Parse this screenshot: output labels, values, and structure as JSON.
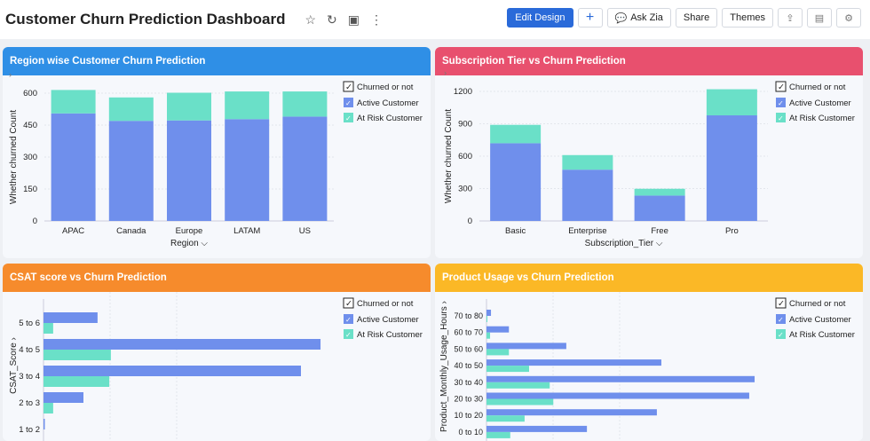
{
  "header": {
    "title": "Customer Churn Prediction Dashboard",
    "icons": [
      "star-icon",
      "refresh-icon",
      "save-icon",
      "more-vertical-icon"
    ],
    "buttons": {
      "edit_design": "Edit Design",
      "add": "+",
      "ask_zia": "Ask Zia",
      "share": "Share",
      "themes": "Themes"
    }
  },
  "colors": {
    "active": "#6f8fec",
    "at_risk": "#6ae0c8",
    "panel1": "#2f8fe6",
    "panel2": "#e8506e",
    "panel3": "#f68b2c",
    "panel4": "#fbb826"
  },
  "legend": {
    "title": "Churned or not",
    "items": [
      "Active Customer",
      "At Risk Customer"
    ]
  },
  "chart_data": [
    {
      "type": "bar",
      "stacked": true,
      "title": "Region wise Customer Churn Prediction",
      "xlabel": "Region",
      "ylabel": "Whether churned Count",
      "ylim": [
        0,
        600
      ],
      "yticks": [
        0,
        150,
        300,
        450,
        600
      ],
      "categories": [
        "APAC",
        "Canada",
        "Europe",
        "LATAM",
        "US"
      ],
      "series": [
        {
          "name": "Active Customer",
          "values": [
            505,
            470,
            472,
            478,
            490
          ]
        },
        {
          "name": "At Risk Customer",
          "values": [
            110,
            110,
            130,
            130,
            118
          ]
        }
      ],
      "legend": "top-right",
      "grid": true
    },
    {
      "type": "bar",
      "stacked": true,
      "title": "Subscription Tier vs Churn Prediction",
      "xlabel": "Subscription_Tier",
      "ylabel": "Whether churned Count",
      "ylim": [
        0,
        1200
      ],
      "yticks": [
        0,
        300,
        600,
        900,
        1200
      ],
      "categories": [
        "Basic",
        "Enterprise",
        "Free",
        "Pro"
      ],
      "series": [
        {
          "name": "Active Customer",
          "values": [
            720,
            475,
            235,
            978
          ]
        },
        {
          "name": "At Risk Customer",
          "values": [
            170,
            135,
            63,
            242
          ]
        }
      ],
      "legend": "top-right",
      "grid": true
    },
    {
      "type": "bar",
      "orientation": "horizontal",
      "title": "CSAT score vs Churn Prediction",
      "ylabel": "CSAT_Score",
      "categories": [
        "5 to 6",
        "4 to 5",
        "3 to 4",
        "2 to 3",
        "1 to 2"
      ],
      "series": [
        {
          "name": "Active Customer",
          "values": [
            207,
            1061,
            986,
            153,
            5
          ]
        },
        {
          "name": "At Risk Customer",
          "values": [
            37,
            258,
            252,
            37,
            0
          ]
        }
      ],
      "legend": "top-right",
      "grid": true
    },
    {
      "type": "bar",
      "orientation": "horizontal",
      "title": "Product Usage vs Churn Prediction",
      "ylabel": "Product_Monthly_Usage_Hours",
      "categories": [
        "70 to 80",
        "60 to 70",
        "50 to 60",
        "40 to 50",
        "30 to 40",
        "20 to 30",
        "10 to 20",
        "0 to 10"
      ],
      "series": [
        {
          "name": "Active Customer",
          "values": [
            10,
            50,
            178,
            390,
            598,
            586,
            380,
            224
          ]
        },
        {
          "name": "At Risk Customer",
          "values": [
            2,
            8,
            50,
            95,
            141,
            149,
            85,
            53
          ]
        }
      ],
      "legend": "top-right",
      "grid": true
    }
  ]
}
